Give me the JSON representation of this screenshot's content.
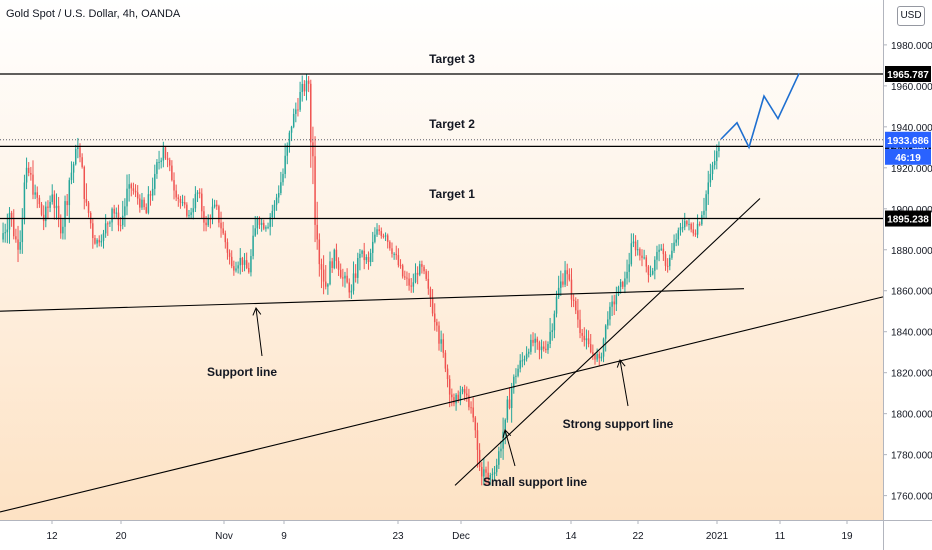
{
  "chart": {
    "title": "Gold Spot / U.S. Dollar, 4h, OANDA",
    "currency": "USD",
    "colors": {
      "up": "#26a69a",
      "down": "#ef5350",
      "projection": "#1e6fd0",
      "blue_label": "#2962ff",
      "line": "#000000",
      "bg_top": "#ffffff",
      "bg_bottom": "#fde2c4"
    }
  },
  "chart_data": {
    "type": "candlestick",
    "ylim": [
      1748,
      2002
    ],
    "ytick_values": [
      1760,
      1780,
      1800,
      1820,
      1840,
      1860,
      1880,
      1900,
      1920,
      1940,
      1960,
      1980
    ],
    "ytick_labels": [
      "1760.000",
      "1780.000",
      "1800.000",
      "1820.000",
      "1840.000",
      "1860.000",
      "1880.000",
      "1900.000",
      "1920.000",
      "1940.000",
      "1960.000",
      "1980.000"
    ],
    "xtick_labels": [
      "12",
      "20",
      "Nov",
      "9",
      "23",
      "Dec",
      "14",
      "22",
      "2021",
      "11",
      "19"
    ],
    "horizontal_levels": [
      {
        "value": 1965.787,
        "label": "1965.787",
        "name": "Target 3"
      },
      {
        "value": 1930.446,
        "label": "1930.446",
        "name": "Target 2"
      },
      {
        "value": 1895.238,
        "label": "1895.238",
        "name": "Target 1"
      }
    ],
    "current_price": {
      "value": 1933.686,
      "label": "1933.686",
      "countdown": "46:19"
    },
    "annotations": [
      "Target 3",
      "Target 2",
      "Target 1",
      "Support line",
      "Strong support line",
      "Small support line"
    ],
    "trendlines": [
      {
        "name": "Support line",
        "from": [
          "Oct 5",
          1850
        ],
        "to": [
          "Jan 1",
          1861
        ]
      },
      {
        "name": "Strong support line",
        "from": [
          "Oct 5",
          1752
        ],
        "to": [
          "Jan 20",
          1857
        ]
      },
      {
        "name": "Small support line",
        "from": [
          "Nov 30",
          1765
        ],
        "to": [
          "Jan 3",
          1905
        ]
      }
    ],
    "projection_path": [
      1934,
      1942,
      1930,
      1955,
      1944,
      1966
    ],
    "price_path": [
      [
        1885,
        1910,
        1877,
        1898
      ],
      [
        1898,
        1900,
        1874,
        1880
      ],
      [
        1880,
        1925,
        1878,
        1920
      ],
      [
        1920,
        1931,
        1903,
        1908
      ],
      [
        1908,
        1912,
        1888,
        1894
      ],
      [
        1894,
        1915,
        1891,
        1907
      ],
      [
        1907,
        1909,
        1885,
        1888
      ],
      [
        1888,
        1918,
        1885,
        1914
      ],
      [
        1914,
        1935,
        1912,
        1930
      ],
      [
        1930,
        1932,
        1898,
        1903
      ],
      [
        1903,
        1904,
        1880,
        1883
      ],
      [
        1883,
        1890,
        1876,
        1888
      ],
      [
        1888,
        1907,
        1882,
        1900
      ],
      [
        1900,
        1903,
        1888,
        1892
      ],
      [
        1892,
        1918,
        1890,
        1912
      ],
      [
        1912,
        1916,
        1902,
        1905
      ],
      [
        1905,
        1910,
        1893,
        1898
      ],
      [
        1898,
        1922,
        1895,
        1917
      ],
      [
        1917,
        1936,
        1914,
        1930
      ],
      [
        1930,
        1932,
        1910,
        1914
      ],
      [
        1914,
        1918,
        1900,
        1903
      ],
      [
        1903,
        1908,
        1895,
        1897
      ],
      [
        1897,
        1912,
        1893,
        1908
      ],
      [
        1908,
        1910,
        1889,
        1892
      ],
      [
        1892,
        1905,
        1888,
        1902
      ],
      [
        1902,
        1905,
        1885,
        1888
      ],
      [
        1888,
        1890,
        1868,
        1872
      ],
      [
        1872,
        1882,
        1864,
        1876
      ],
      [
        1876,
        1880,
        1866,
        1869
      ],
      [
        1869,
        1898,
        1867,
        1895
      ],
      [
        1895,
        1900,
        1888,
        1891
      ],
      [
        1891,
        1906,
        1887,
        1902
      ],
      [
        1902,
        1920,
        1899,
        1917
      ],
      [
        1917,
        1945,
        1913,
        1940
      ],
      [
        1940,
        1962,
        1936,
        1957
      ],
      [
        1957,
        1966,
        1948,
        1961
      ],
      [
        1961,
        1963,
        1880,
        1885
      ],
      [
        1885,
        1888,
        1852,
        1862
      ],
      [
        1862,
        1884,
        1858,
        1880
      ],
      [
        1880,
        1883,
        1862,
        1866
      ],
      [
        1866,
        1874,
        1856,
        1860
      ],
      [
        1860,
        1882,
        1858,
        1878
      ],
      [
        1878,
        1886,
        1870,
        1874
      ],
      [
        1874,
        1893,
        1872,
        1890
      ],
      [
        1890,
        1898,
        1884,
        1887
      ],
      [
        1887,
        1890,
        1874,
        1878
      ],
      [
        1878,
        1882,
        1864,
        1867
      ],
      [
        1867,
        1872,
        1858,
        1862
      ],
      [
        1862,
        1876,
        1859,
        1873
      ],
      [
        1873,
        1875,
        1858,
        1861
      ],
      [
        1861,
        1862,
        1840,
        1843
      ],
      [
        1843,
        1845,
        1818,
        1822
      ],
      [
        1822,
        1824,
        1800,
        1805
      ],
      [
        1805,
        1816,
        1801,
        1812
      ],
      [
        1812,
        1815,
        1800,
        1803
      ],
      [
        1803,
        1808,
        1770,
        1774
      ],
      [
        1774,
        1790,
        1765,
        1768
      ],
      [
        1768,
        1778,
        1765,
        1775
      ],
      [
        1775,
        1800,
        1773,
        1797
      ],
      [
        1797,
        1822,
        1794,
        1818
      ],
      [
        1818,
        1831,
        1810,
        1826
      ],
      [
        1826,
        1840,
        1820,
        1836
      ],
      [
        1836,
        1844,
        1826,
        1831
      ],
      [
        1831,
        1838,
        1822,
        1834
      ],
      [
        1834,
        1860,
        1832,
        1857
      ],
      [
        1857,
        1875,
        1852,
        1870
      ],
      [
        1870,
        1874,
        1852,
        1855
      ],
      [
        1855,
        1858,
        1835,
        1838
      ],
      [
        1838,
        1844,
        1826,
        1830
      ],
      [
        1830,
        1834,
        1820,
        1827
      ],
      [
        1827,
        1850,
        1824,
        1846
      ],
      [
        1846,
        1862,
        1843,
        1858
      ],
      [
        1858,
        1870,
        1855,
        1866
      ],
      [
        1866,
        1888,
        1863,
        1884
      ],
      [
        1884,
        1890,
        1872,
        1876
      ],
      [
        1876,
        1880,
        1864,
        1868
      ],
      [
        1868,
        1883,
        1865,
        1880
      ],
      [
        1880,
        1883,
        1868,
        1872
      ],
      [
        1872,
        1888,
        1870,
        1885
      ],
      [
        1885,
        1898,
        1882,
        1894
      ],
      [
        1894,
        1898,
        1884,
        1888
      ],
      [
        1888,
        1902,
        1885,
        1897
      ],
      [
        1897,
        1922,
        1895,
        1917
      ],
      [
        1917,
        1934,
        1914,
        1930
      ]
    ]
  }
}
